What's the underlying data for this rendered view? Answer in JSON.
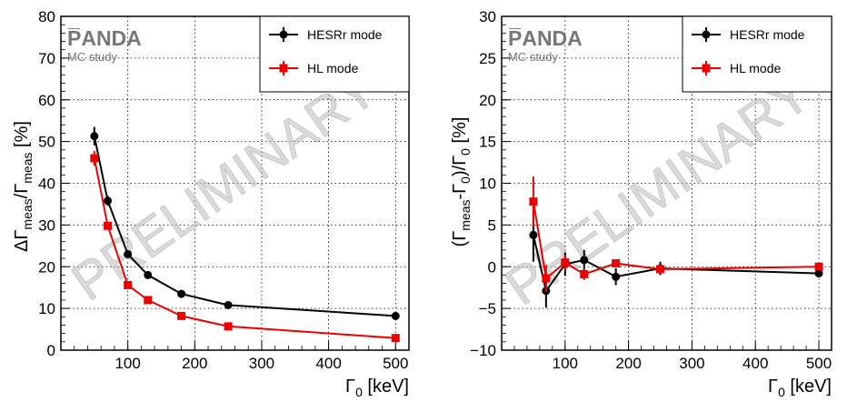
{
  "colors": {
    "hesr": "#000000",
    "hl": "#ee0000",
    "watermark": "#bbbbbb",
    "grid": "#000000"
  },
  "chart_data": [
    {
      "type": "line",
      "logo": "P̅ANDA",
      "note": "MC study",
      "watermark": "PRELIMINARY",
      "ylabel": {
        "main": "ΔΓ",
        "sub1": "meas",
        "mid": "/Γ",
        "sub2": "meas",
        "tail": " [%]"
      },
      "xlabel": {
        "main": "Γ",
        "sub": "0",
        "tail": " [keV]"
      },
      "xlim": [
        0,
        520
      ],
      "ylim": [
        0,
        80
      ],
      "xticks": [
        100,
        200,
        300,
        400,
        500
      ],
      "yticks": [
        0,
        10,
        20,
        30,
        40,
        50,
        60,
        70,
        80
      ],
      "grid": "dotted",
      "legend_position": "top-right",
      "series": [
        {
          "name": "HESRr mode",
          "marker": "circle",
          "x": [
            50,
            70,
            100,
            130,
            180,
            250,
            500
          ],
          "y": [
            51.3,
            35.8,
            23.0,
            18.0,
            13.5,
            10.8,
            8.2
          ],
          "err": [
            2.2,
            1.2,
            0.6,
            0.5,
            0.4,
            0.3,
            0.3
          ]
        },
        {
          "name": "HL mode",
          "marker": "square",
          "x": [
            50,
            70,
            100,
            130,
            180,
            250,
            500
          ],
          "y": [
            46.0,
            29.8,
            15.6,
            12.0,
            8.2,
            5.7,
            2.9
          ],
          "err": [
            1.8,
            0.8,
            0.5,
            0.4,
            0.3,
            0.2,
            0.2
          ]
        }
      ]
    },
    {
      "type": "line",
      "logo": "P̅ANDA",
      "note": "MC study",
      "watermark": "PRELIMINARY",
      "ylabel": {
        "pre": "(Γ",
        "sub1": "meas",
        "mid": "-Γ",
        "sub2": "0",
        "mid2": ")/Γ",
        "sub3": "0",
        "tail": " [%]"
      },
      "xlabel": {
        "main": "Γ",
        "sub": "0",
        "tail": " [keV]"
      },
      "xlim": [
        0,
        520
      ],
      "ylim": [
        -10,
        30
      ],
      "xticks": [
        100,
        200,
        300,
        400,
        500
      ],
      "yticks": [
        -10,
        -5,
        0,
        5,
        10,
        15,
        20,
        25,
        30
      ],
      "grid": "dotted",
      "legend_position": "top-right",
      "series": [
        {
          "name": "HESRr mode",
          "marker": "circle",
          "x": [
            50,
            70,
            100,
            130,
            180,
            250,
            500
          ],
          "y": [
            3.8,
            -2.9,
            0.3,
            0.8,
            -1.2,
            -0.2,
            -0.8
          ],
          "err": [
            3.2,
            2.0,
            1.4,
            1.2,
            1.0,
            0.8,
            0.4
          ]
        },
        {
          "name": "HL mode",
          "marker": "square",
          "x": [
            50,
            70,
            100,
            130,
            180,
            250,
            500
          ],
          "y": [
            7.8,
            -1.4,
            0.5,
            -0.9,
            0.4,
            -0.3,
            0.0
          ],
          "err": [
            3.0,
            1.6,
            0.9,
            0.7,
            0.4,
            0.3,
            0.3
          ]
        }
      ]
    }
  ]
}
